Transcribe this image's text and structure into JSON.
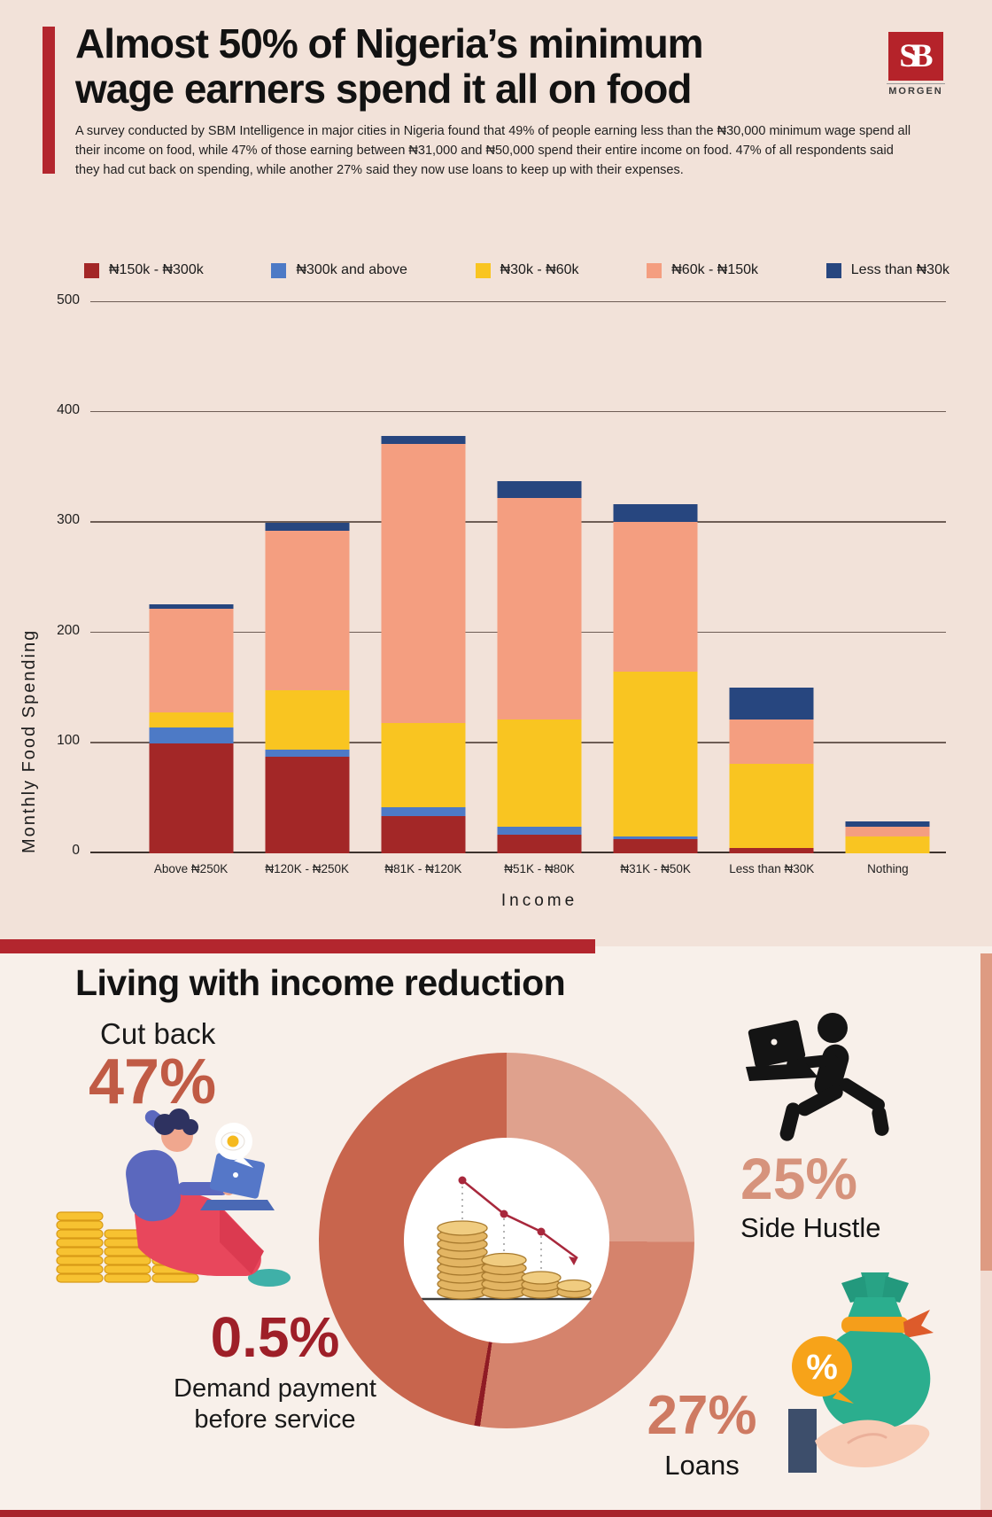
{
  "header": {
    "title_line1": "Almost 50% of Nigeria’s minimum",
    "title_line2": "wage earners spend it all on food",
    "description": "A survey conducted by SBM Intelligence in major cities in Nigeria found that 49% of people earning less than the ₦30,000 minimum wage spend all their income on food, while 47% of those earning between ₦31,000 and ₦50,000 spend their entire income on food. 47% of all respondents said they had cut back on spending, while another 27% said they now use loans to keep up with their expenses.",
    "logo": {
      "letters": "SB",
      "name": "MORGEN"
    }
  },
  "chart_data": [
    {
      "type": "bar",
      "stacked": true,
      "xlabel": "Income",
      "ylabel": "Monthly Food Spending",
      "ylim": [
        0,
        500
      ],
      "yticks": [
        0,
        100,
        200,
        300,
        400,
        500
      ],
      "grid": true,
      "legend_position": "top",
      "categories": [
        "Above ₦250K",
        "₦120K - ₦250K",
        "₦81K - ₦120K",
        "₦51K - ₦80K",
        "₦31K - ₦50K",
        "Less than ₦30K",
        "Nothing"
      ],
      "series": [
        {
          "name": "₦150k - ₦300k",
          "color": "#A32727",
          "values": [
            100,
            88,
            34,
            17,
            13,
            5,
            0
          ]
        },
        {
          "name": "₦300k and above",
          "color": "#4D7AC6",
          "values": [
            14,
            6,
            8,
            7,
            2,
            0,
            0
          ]
        },
        {
          "name": "₦30k - ₦60k",
          "color": "#F9C521",
          "values": [
            14,
            54,
            76,
            97,
            150,
            76,
            15
          ]
        },
        {
          "name": "₦60k - ₦150k",
          "color": "#F49E80",
          "values": [
            94,
            145,
            253,
            201,
            136,
            40,
            9
          ]
        },
        {
          "name": "Less than ₦30k",
          "color": "#27467F",
          "values": [
            4,
            7,
            8,
            16,
            16,
            29,
            5
          ]
        }
      ],
      "totals": [
        226,
        300,
        379,
        338,
        317,
        150,
        29
      ]
    },
    {
      "type": "pie",
      "title": "Living with income reduction",
      "donut": true,
      "segments": [
        {
          "label": "Side Hustle",
          "value": 25,
          "color": "#DFA18D"
        },
        {
          "label": "Loans",
          "value": 27,
          "color": "#D5836C"
        },
        {
          "label": "Demand payment before service",
          "value": 0.5,
          "color": "#8F1B24"
        },
        {
          "label": "Cut back",
          "value": 47,
          "color": "#C8654D"
        }
      ]
    }
  ],
  "breakdown": {
    "section_title": "Living with income reduction",
    "cut_back": {
      "label": "Cut back",
      "value": "47%"
    },
    "side_hustle": {
      "value": "25%",
      "label": "Side Hustle"
    },
    "demand": {
      "value": "0.5%",
      "label_line1": "Demand payment",
      "label_line2": "before service"
    },
    "loans": {
      "value": "27%",
      "label": "Loans"
    }
  },
  "colors": {
    "top_background": "#F2E2D9",
    "bottom_background": "#F8F0EA",
    "accent_red": "#B3262E",
    "footer_red": "#A8232B",
    "cutback_text": "#C05B45",
    "demand_text": "#9E1F28",
    "side_hustle_text": "#D6937C",
    "loans_text": "#CE7A62"
  }
}
